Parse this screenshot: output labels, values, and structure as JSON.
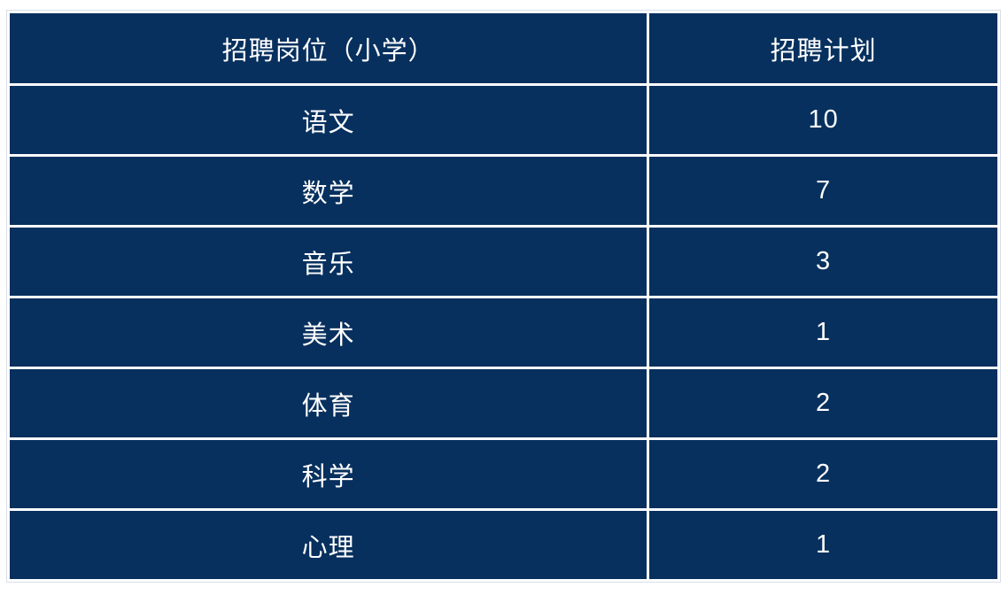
{
  "table": {
    "columns": [
      {
        "label": "招聘岗位（小学）"
      },
      {
        "label": "招聘计划"
      }
    ],
    "rows": [
      {
        "position": "语文",
        "plan": "10"
      },
      {
        "position": "数学",
        "plan": "7"
      },
      {
        "position": "音乐",
        "plan": "3"
      },
      {
        "position": "美术",
        "plan": "1"
      },
      {
        "position": "体育",
        "plan": "2"
      },
      {
        "position": "科学",
        "plan": "2"
      },
      {
        "position": "心理",
        "plan": "1"
      }
    ],
    "colors": {
      "cell_bg": "#07305e",
      "text": "#ffffff",
      "grid": "#ffffff",
      "outer_border": "#d9dfe9"
    }
  }
}
